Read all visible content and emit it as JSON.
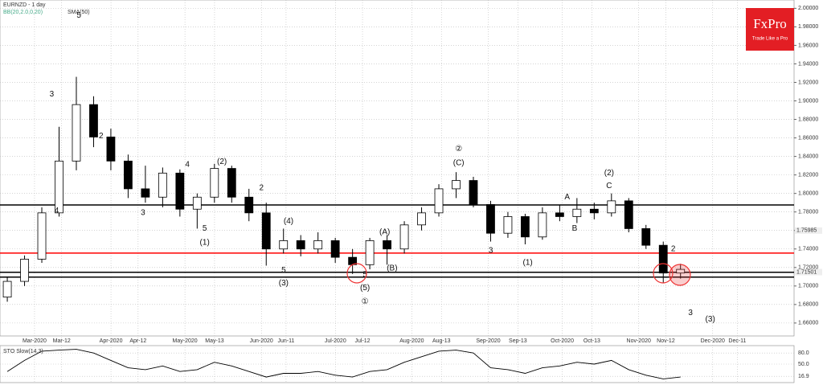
{
  "chart_data": [
    {
      "type": "candlestick",
      "title": "EURNZD - 1 day",
      "indicators": [
        "BB(20,2.0,0,20)",
        "SMA(50)"
      ],
      "x": [
        "2020-02-17",
        "2020-02-24",
        "2020-03-02",
        "2020-03-09",
        "2020-03-16",
        "2020-03-23",
        "2020-03-30",
        "2020-04-06",
        "2020-04-13",
        "2020-04-20",
        "2020-04-27",
        "2020-05-04",
        "2020-05-11",
        "2020-05-18",
        "2020-05-25",
        "2020-06-01",
        "2020-06-08",
        "2020-06-15",
        "2020-06-22",
        "2020-06-29",
        "2020-07-06",
        "2020-07-13",
        "2020-07-20",
        "2020-07-27",
        "2020-08-03",
        "2020-08-10",
        "2020-08-17",
        "2020-08-24",
        "2020-08-31",
        "2020-09-07",
        "2020-09-14",
        "2020-09-21",
        "2020-09-28",
        "2020-10-05",
        "2020-10-12",
        "2020-10-19",
        "2020-10-26",
        "2020-11-02",
        "2020-11-09",
        "2020-11-16"
      ],
      "open": [
        1.688,
        1.705,
        1.729,
        1.779,
        1.835,
        1.896,
        1.861,
        1.835,
        1.805,
        1.796,
        1.822,
        1.783,
        1.796,
        1.827,
        1.796,
        1.779,
        1.74,
        1.749,
        1.74,
        1.749,
        1.731,
        1.723,
        1.749,
        1.74,
        1.766,
        1.779,
        1.805,
        1.814,
        1.788,
        1.757,
        1.775,
        1.753,
        1.779,
        1.775,
        1.783,
        1.779,
        1.792,
        1.762,
        1.744,
        1.714
      ],
      "high": [
        1.71,
        1.733,
        1.785,
        1.872,
        1.926,
        1.905,
        1.87,
        1.842,
        1.83,
        1.828,
        1.826,
        1.8,
        1.832,
        1.83,
        1.805,
        1.79,
        1.762,
        1.755,
        1.758,
        1.752,
        1.74,
        1.752,
        1.755,
        1.77,
        1.785,
        1.81,
        1.823,
        1.818,
        1.792,
        1.78,
        1.778,
        1.785,
        1.788,
        1.795,
        1.79,
        1.8,
        1.795,
        1.766,
        1.748,
        1.724
      ],
      "low": [
        1.683,
        1.7,
        1.725,
        1.775,
        1.825,
        1.85,
        1.825,
        1.795,
        1.79,
        1.785,
        1.775,
        1.762,
        1.79,
        1.79,
        1.77,
        1.722,
        1.735,
        1.732,
        1.735,
        1.725,
        1.713,
        1.718,
        1.723,
        1.735,
        1.76,
        1.775,
        1.795,
        1.785,
        1.748,
        1.752,
        1.745,
        1.75,
        1.77,
        1.768,
        1.772,
        1.775,
        1.758,
        1.74,
        1.703,
        1.708
      ],
      "close": [
        1.705,
        1.729,
        1.779,
        1.835,
        1.896,
        1.861,
        1.835,
        1.805,
        1.796,
        1.822,
        1.783,
        1.796,
        1.827,
        1.796,
        1.779,
        1.74,
        1.749,
        1.74,
        1.749,
        1.731,
        1.723,
        1.749,
        1.74,
        1.766,
        1.779,
        1.805,
        1.814,
        1.788,
        1.757,
        1.775,
        1.753,
        1.779,
        1.775,
        1.783,
        1.779,
        1.792,
        1.762,
        1.744,
        1.714,
        1.718
      ],
      "xlim": [
        "2020-02-16",
        "2021-01-03"
      ],
      "xticks": [
        {
          "value": "2020-03-01",
          "label": "Mar-2020"
        },
        {
          "value": "2020-03-12",
          "label": "Mar-12"
        },
        {
          "value": "2020-04-01",
          "label": "Apr-2020"
        },
        {
          "value": "2020-04-12",
          "label": "Apr-12"
        },
        {
          "value": "2020-05-01",
          "label": "May-2020"
        },
        {
          "value": "2020-05-13",
          "label": "May-13"
        },
        {
          "value": "2020-06-01",
          "label": "Jun-2020"
        },
        {
          "value": "2020-06-11",
          "label": "Jun-11"
        },
        {
          "value": "2020-07-01",
          "label": "Jul-2020"
        },
        {
          "value": "2020-07-12",
          "label": "Jul-12"
        },
        {
          "value": "2020-08-01",
          "label": "Aug-2020"
        },
        {
          "value": "2020-08-13",
          "label": "Aug-13"
        },
        {
          "value": "2020-09-01",
          "label": "Sep-2020"
        },
        {
          "value": "2020-09-13",
          "label": "Sep-13"
        },
        {
          "value": "2020-10-01",
          "label": "Oct-2020"
        },
        {
          "value": "2020-10-13",
          "label": "Oct-13"
        },
        {
          "value": "2020-11-01",
          "label": "Nov-2020"
        },
        {
          "value": "2020-11-12",
          "label": "Nov-12"
        },
        {
          "value": "2020-12-01",
          "label": "Dec-2020"
        },
        {
          "value": "2020-12-11",
          "label": "Dec-11"
        }
      ],
      "ylim": [
        1.646,
        2.009
      ],
      "yticks": [
        {
          "value": 1.66,
          "label": "1.66000"
        },
        {
          "value": 1.68,
          "label": "1.68000"
        },
        {
          "value": 1.7,
          "label": "1.70000"
        },
        {
          "value": 1.72,
          "label": "1.72000"
        },
        {
          "value": 1.74,
          "label": "1.74000"
        },
        {
          "value": 1.76,
          "label": "1.76000"
        },
        {
          "value": 1.78,
          "label": "1.78000"
        },
        {
          "value": 1.8,
          "label": "1.80000"
        },
        {
          "value": 1.82,
          "label": "1.82000"
        },
        {
          "value": 1.84,
          "label": "1.84000"
        },
        {
          "value": 1.86,
          "label": "1.86000"
        },
        {
          "value": 1.88,
          "label": "1.88000"
        },
        {
          "value": 1.9,
          "label": "1.90000"
        },
        {
          "value": 1.92,
          "label": "1.92000"
        },
        {
          "value": 1.94,
          "label": "1.94000"
        },
        {
          "value": 1.96,
          "label": "1.96000"
        },
        {
          "value": 1.98,
          "label": "1.98000"
        },
        {
          "value": 2.0,
          "label": "2.00000"
        }
      ],
      "grid": true,
      "levels": [
        {
          "value": 1.7876,
          "color": "#000000"
        },
        {
          "value": 1.7356,
          "color": "#ff0000"
        },
        {
          "value": 1.7148,
          "color": "#000000"
        },
        {
          "value": 1.7096,
          "color": "#000000"
        }
      ],
      "price_labels": [
        {
          "value": 1.75985,
          "label": "1.75985"
        },
        {
          "value": 1.71501,
          "label": "1.71501"
        }
      ],
      "annotations": [
        {
          "text": "3",
          "x": "2020-03-08",
          "y": 1.907
        },
        {
          "text": "5",
          "x": "2020-03-19",
          "y": 1.992
        },
        {
          "text": "2",
          "x": "2020-03-28",
          "y": 1.862
        },
        {
          "text": "4",
          "x": "2020-03-10",
          "y": 1.781
        },
        {
          "text": "3",
          "x": "2020-04-14",
          "y": 1.779
        },
        {
          "text": "4",
          "x": "2020-05-02",
          "y": 1.831
        },
        {
          "text": "(2)",
          "x": "2020-05-16",
          "y": 1.834
        },
        {
          "text": "5",
          "x": "2020-05-09",
          "y": 1.762
        },
        {
          "text": "(1)",
          "x": "2020-05-09",
          "y": 1.747
        },
        {
          "text": "2",
          "x": "2020-06-01",
          "y": 1.806
        },
        {
          "text": "(4)",
          "x": "2020-06-12",
          "y": 1.77
        },
        {
          "text": "5",
          "x": "2020-06-10",
          "y": 1.717
        },
        {
          "text": "(3)",
          "x": "2020-06-10",
          "y": 1.703
        },
        {
          "text": "(A)",
          "x": "2020-07-21",
          "y": 1.758
        },
        {
          "text": "(B)",
          "x": "2020-07-24",
          "y": 1.719
        },
        {
          "text": "5",
          "x": "2020-07-13",
          "y": 1.712
        },
        {
          "text": "(5)",
          "x": "2020-07-13",
          "y": 1.698
        },
        {
          "text": "①",
          "x": "2020-07-13",
          "y": 1.683
        },
        {
          "text": "②",
          "x": "2020-08-20",
          "y": 1.848
        },
        {
          "text": "(C)",
          "x": "2020-08-20",
          "y": 1.833
        },
        {
          "text": "3",
          "x": "2020-09-02",
          "y": 1.738
        },
        {
          "text": "(1)",
          "x": "2020-09-17",
          "y": 1.725
        },
        {
          "text": "A",
          "x": "2020-10-03",
          "y": 1.796
        },
        {
          "text": "B",
          "x": "2020-10-06",
          "y": 1.762
        },
        {
          "text": "(2)",
          "x": "2020-10-20",
          "y": 1.822
        },
        {
          "text": "C",
          "x": "2020-10-20",
          "y": 1.808
        },
        {
          "text": "2",
          "x": "2020-11-15",
          "y": 1.74
        },
        {
          "text": "3",
          "x": "2020-11-22",
          "y": 1.671
        },
        {
          "text": "(3)",
          "x": "2020-11-30",
          "y": 1.664
        }
      ]
    },
    {
      "type": "line",
      "title": "STO Slow(14,3)",
      "x": [
        "2020-02-17",
        "2020-02-24",
        "2020-03-02",
        "2020-03-09",
        "2020-03-16",
        "2020-03-23",
        "2020-03-30",
        "2020-04-06",
        "2020-04-13",
        "2020-04-20",
        "2020-04-27",
        "2020-05-04",
        "2020-05-11",
        "2020-05-18",
        "2020-05-25",
        "2020-06-01",
        "2020-06-08",
        "2020-06-15",
        "2020-06-22",
        "2020-06-29",
        "2020-07-06",
        "2020-07-13",
        "2020-07-20",
        "2020-07-27",
        "2020-08-03",
        "2020-08-10",
        "2020-08-17",
        "2020-08-24",
        "2020-08-31",
        "2020-09-07",
        "2020-09-14",
        "2020-09-21",
        "2020-09-28",
        "2020-10-05",
        "2020-10-12",
        "2020-10-19",
        "2020-10-26",
        "2020-11-02",
        "2020-11-09",
        "2020-11-16"
      ],
      "values": [
        30,
        60,
        85,
        88,
        90,
        80,
        60,
        40,
        35,
        45,
        30,
        35,
        55,
        45,
        30,
        15,
        25,
        25,
        30,
        20,
        15,
        30,
        35,
        55,
        70,
        85,
        88,
        80,
        40,
        35,
        25,
        40,
        45,
        55,
        50,
        60,
        35,
        20,
        10,
        15
      ],
      "color": "#000000",
      "xlim": [
        "2020-02-16",
        "2021-01-03"
      ],
      "ylim": [
        0,
        100
      ],
      "yticks": [
        {
          "value": 16.9,
          "label": "16.9"
        },
        {
          "value": 50,
          "label": "50.0"
        },
        {
          "value": 80,
          "label": "80.0"
        }
      ]
    }
  ],
  "logo": {
    "brand": "FxPro",
    "slogan": "Trade Like a Pro"
  }
}
